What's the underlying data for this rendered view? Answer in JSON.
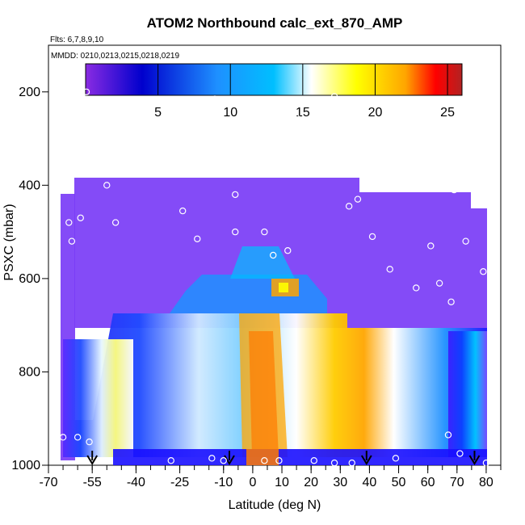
{
  "chart_data": {
    "type": "heatmap",
    "title": "ATOM2 Northbound calc_ext_870_AMP",
    "subtitle_flights": "Flts: 6,7,8,9,10",
    "subtitle_dates": "MMDD: 0210,0213,0215,0218,0219",
    "xlabel": "Latitude (deg N)",
    "ylabel": "PSXC (mbar)",
    "xlim": [
      -70,
      85
    ],
    "ylim": [
      1000,
      100
    ],
    "x_ticks": [
      -70,
      -55,
      -40,
      -25,
      -10,
      0,
      10,
      20,
      30,
      40,
      50,
      60,
      70,
      80
    ],
    "x_tick_labels": [
      "-70",
      "-55",
      "-40",
      "-25",
      "-10",
      "0",
      "10",
      "20",
      "30",
      "40",
      "50",
      "60",
      "70",
      "80"
    ],
    "y_ticks": [
      1000,
      800,
      600,
      400,
      200
    ],
    "y_tick_labels": [
      "1000",
      "800",
      "600",
      "400",
      "200"
    ],
    "colorbar": {
      "range": [
        0,
        26
      ],
      "ticks": [
        5,
        10,
        15,
        20,
        25
      ],
      "tick_labels": [
        "5",
        "10",
        "15",
        "20",
        "25"
      ],
      "colors": [
        "#8a2be2",
        "#0000cd",
        "#1e90ff",
        "#00bfff",
        "#ffffff",
        "#ffff00",
        "#ffa500",
        "#ff0000",
        "#b22222"
      ]
    },
    "series": [
      {
        "type": "profile_markers",
        "latitudes": [
          -55,
          -8,
          39,
          76
        ]
      },
      {
        "type": "sample_points",
        "points": [
          [
            -65,
            940
          ],
          [
            -60,
            940
          ],
          [
            -56,
            950
          ],
          [
            -49,
            990
          ],
          [
            -28,
            990
          ],
          [
            -14,
            985
          ],
          [
            -10,
            990
          ],
          [
            4,
            990
          ],
          [
            9,
            990
          ],
          [
            21,
            990
          ],
          [
            28,
            995
          ],
          [
            34,
            995
          ],
          [
            49,
            985
          ],
          [
            67,
            935
          ],
          [
            71,
            975
          ],
          [
            80,
            995
          ],
          [
            -64,
            240
          ],
          [
            -63,
            480
          ],
          [
            -62,
            520
          ],
          [
            -59,
            470
          ],
          [
            -57,
            200
          ],
          [
            -50,
            400
          ],
          [
            -47,
            480
          ],
          [
            -44,
            260
          ],
          [
            -40,
            260
          ],
          [
            -36,
            260
          ],
          [
            -30,
            240
          ],
          [
            -24,
            455
          ],
          [
            -19,
            515
          ],
          [
            -13,
            215
          ],
          [
            -6,
            420
          ],
          [
            -6,
            500
          ],
          [
            4,
            500
          ],
          [
            7,
            550
          ],
          [
            12,
            540
          ],
          [
            15,
            255
          ],
          [
            22,
            260
          ],
          [
            28,
            210
          ],
          [
            33,
            445
          ],
          [
            36,
            430
          ],
          [
            41,
            510
          ],
          [
            44,
            340
          ],
          [
            47,
            580
          ],
          [
            52,
            340
          ],
          [
            56,
            620
          ],
          [
            61,
            530
          ],
          [
            64,
            610
          ],
          [
            68,
            650
          ],
          [
            69,
            410
          ],
          [
            73,
            520
          ],
          [
            77,
            390
          ],
          [
            79,
            585
          ],
          [
            81,
            285
          ]
        ]
      }
    ]
  }
}
